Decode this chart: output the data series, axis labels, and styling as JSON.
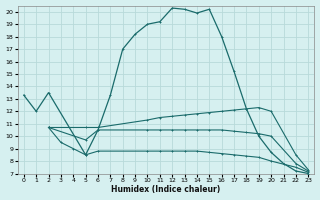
{
  "xlabel": "Humidex (Indice chaleur)",
  "bg_color": "#d6f0f0",
  "grid_color": "#b8dada",
  "line_color": "#1a6b6b",
  "xlim": [
    -0.5,
    23.5
  ],
  "ylim": [
    7,
    20.5
  ],
  "xticks": [
    0,
    1,
    2,
    3,
    4,
    5,
    6,
    7,
    8,
    9,
    10,
    11,
    12,
    13,
    14,
    15,
    16,
    17,
    18,
    19,
    20,
    21,
    22,
    23
  ],
  "yticks": [
    7,
    8,
    9,
    10,
    11,
    12,
    13,
    14,
    15,
    16,
    17,
    18,
    19,
    20
  ],
  "line1_x": [
    0,
    1,
    2,
    5,
    6,
    7,
    8,
    9,
    10,
    11,
    12,
    13,
    14,
    15,
    16,
    17,
    18,
    19,
    20,
    21,
    22,
    23
  ],
  "line1_y": [
    13.3,
    12.0,
    13.5,
    8.5,
    10.5,
    13.3,
    17.0,
    18.2,
    19.0,
    19.2,
    20.3,
    20.2,
    19.9,
    20.2,
    18.0,
    15.2,
    12.2,
    10.0,
    8.7,
    7.8,
    7.2,
    7.0
  ],
  "line2_x": [
    2,
    5,
    6,
    10,
    11,
    12,
    13,
    14,
    15,
    16,
    17,
    18,
    19,
    20,
    22,
    23
  ],
  "line2_y": [
    10.7,
    10.7,
    10.7,
    11.3,
    11.5,
    11.6,
    11.7,
    11.8,
    11.9,
    12.0,
    12.1,
    12.2,
    12.3,
    12.0,
    8.5,
    7.3
  ],
  "line3_x": [
    2,
    5,
    6,
    10,
    11,
    12,
    13,
    14,
    15,
    16,
    17,
    18,
    19,
    20,
    22,
    23
  ],
  "line3_y": [
    10.7,
    9.7,
    10.5,
    10.5,
    10.5,
    10.5,
    10.5,
    10.5,
    10.5,
    10.5,
    10.4,
    10.3,
    10.2,
    10.0,
    7.8,
    7.2
  ],
  "line4_x": [
    2,
    3,
    4,
    5,
    6,
    10,
    11,
    12,
    13,
    14,
    15,
    16,
    17,
    18,
    19,
    20,
    22,
    23
  ],
  "line4_y": [
    10.7,
    9.5,
    9.0,
    8.5,
    8.8,
    8.8,
    8.8,
    8.8,
    8.8,
    8.8,
    8.7,
    8.6,
    8.5,
    8.4,
    8.3,
    8.0,
    7.5,
    7.1
  ]
}
